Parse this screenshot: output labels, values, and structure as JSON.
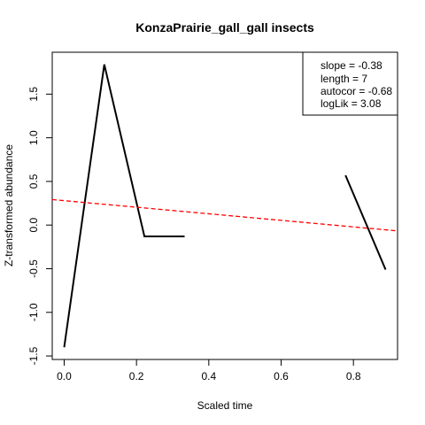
{
  "chart_data": {
    "type": "line",
    "title": "KonzaPrairie_gall_gall insects",
    "xlabel": "Scaled time",
    "ylabel": "Z-transformed abundance",
    "xlim": [
      -0.033,
      0.922
    ],
    "ylim": [
      -1.54,
      1.98
    ],
    "xticks": [
      0.0,
      0.2,
      0.4,
      0.6,
      0.8
    ],
    "xtick_labels": [
      "0.0",
      "0.2",
      "0.4",
      "0.6",
      "0.8"
    ],
    "yticks": [
      -1.5,
      -1.0,
      -0.5,
      0.0,
      0.5,
      1.0,
      1.5
    ],
    "ytick_labels": [
      "-1.5",
      "-1.0",
      "-0.5",
      "0.0",
      "0.5",
      "1.0",
      "1.5"
    ],
    "series": [
      {
        "segments": [
          [
            [
              0.0,
              -1.4
            ],
            [
              0.111,
              1.84
            ],
            [
              0.222,
              -0.13
            ],
            [
              0.333,
              -0.13
            ]
          ],
          [
            [
              0.778,
              0.57
            ],
            [
              0.889,
              -0.51
            ]
          ]
        ],
        "color": "#000000",
        "style": "solid"
      }
    ],
    "trend_line": {
      "points": [
        [
          -0.033,
          0.292
        ],
        [
          0.922,
          -0.067
        ]
      ],
      "color": "#ff0000",
      "style": "dashed"
    },
    "legend": {
      "placement": "top-right",
      "entries": [
        "slope = -0.38",
        "length = 7",
        "autocor = -0.68",
        "logLik = 3.08"
      ]
    }
  }
}
